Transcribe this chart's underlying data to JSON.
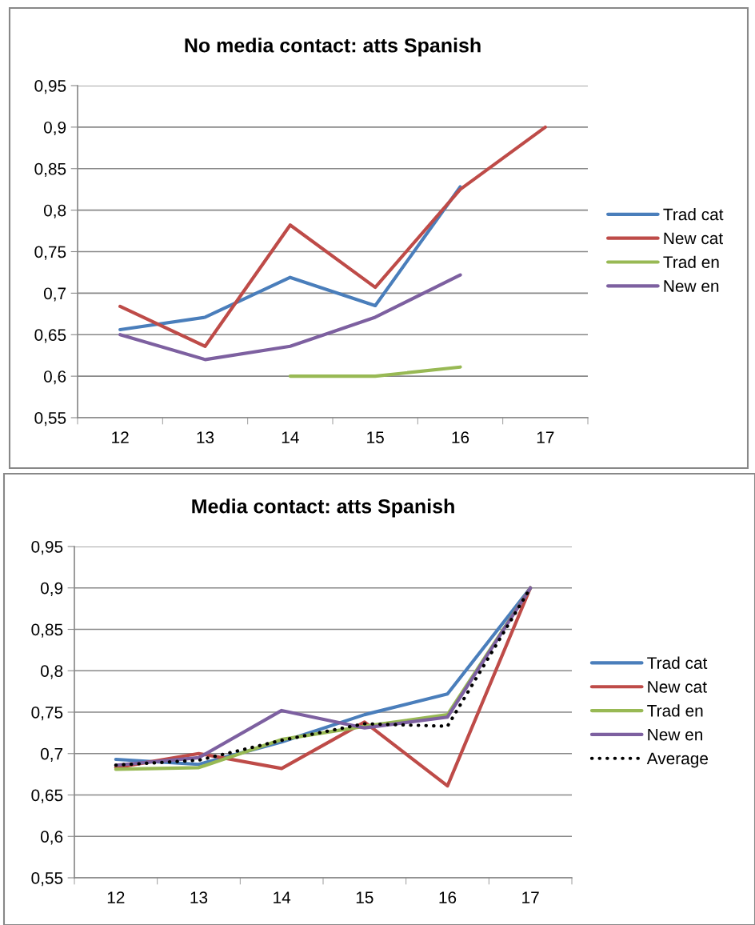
{
  "chart_data": [
    {
      "type": "line",
      "title": "No media contact: atts Spanish",
      "categories": [
        "12",
        "13",
        "14",
        "15",
        "16",
        "17"
      ],
      "ylim": [
        0.55,
        0.95
      ],
      "yticks": [
        {
          "value": 0.55,
          "label": "0,55"
        },
        {
          "value": 0.6,
          "label": "0,6"
        },
        {
          "value": 0.65,
          "label": "0,65"
        },
        {
          "value": 0.7,
          "label": "0,7"
        },
        {
          "value": 0.75,
          "label": "0,75"
        },
        {
          "value": 0.8,
          "label": "0,8"
        },
        {
          "value": 0.85,
          "label": "0,85"
        },
        {
          "value": 0.9,
          "label": "0,9"
        },
        {
          "value": 0.95,
          "label": "0,95"
        }
      ],
      "grid": "y",
      "legend": "right",
      "marker": "none",
      "line_style": "solid",
      "series": [
        {
          "name": "Trad cat",
          "color": "#4a7ebb",
          "values": [
            0.656,
            0.671,
            0.719,
            0.685,
            0.828,
            null
          ]
        },
        {
          "name": "New cat",
          "color": "#be4b48",
          "values": [
            0.684,
            0.636,
            0.782,
            0.707,
            0.825,
            0.9
          ]
        },
        {
          "name": "Trad en",
          "color": "#98b954",
          "values": [
            null,
            null,
            0.6,
            0.6,
            0.611,
            null
          ]
        },
        {
          "name": "New en",
          "color": "#7d60a0",
          "values": [
            0.65,
            0.62,
            0.636,
            0.671,
            0.722,
            null
          ]
        }
      ]
    },
    {
      "type": "line",
      "title": "Media contact: atts Spanish",
      "categories": [
        "12",
        "13",
        "14",
        "15",
        "16",
        "17"
      ],
      "ylim": [
        0.55,
        0.95
      ],
      "yticks": [
        {
          "value": 0.55,
          "label": "0,55"
        },
        {
          "value": 0.6,
          "label": "0,6"
        },
        {
          "value": 0.65,
          "label": "0,65"
        },
        {
          "value": 0.7,
          "label": "0,7"
        },
        {
          "value": 0.75,
          "label": "0,75"
        },
        {
          "value": 0.8,
          "label": "0,8"
        },
        {
          "value": 0.85,
          "label": "0,85"
        },
        {
          "value": 0.9,
          "label": "0,9"
        },
        {
          "value": 0.95,
          "label": "0,95"
        }
      ],
      "grid": "y",
      "legend": "right",
      "marker": "none",
      "line_style": "solid",
      "series": [
        {
          "name": "Trad cat",
          "color": "#4a7ebb",
          "values": [
            0.693,
            0.687,
            0.714,
            0.747,
            0.772,
            0.9
          ]
        },
        {
          "name": "New cat",
          "color": "#be4b48",
          "values": [
            0.683,
            0.7,
            0.682,
            0.738,
            0.661,
            0.9
          ]
        },
        {
          "name": "Trad en",
          "color": "#98b954",
          "values": [
            0.681,
            0.683,
            0.717,
            0.733,
            0.747,
            0.9
          ]
        },
        {
          "name": "New en",
          "color": "#7d60a0",
          "values": [
            0.686,
            0.695,
            0.752,
            0.731,
            0.744,
            0.9
          ]
        },
        {
          "name": "Average",
          "color": "#000000",
          "line_style": "dotted",
          "values": [
            0.686,
            0.692,
            0.716,
            0.736,
            0.733,
            0.9
          ]
        }
      ]
    }
  ]
}
